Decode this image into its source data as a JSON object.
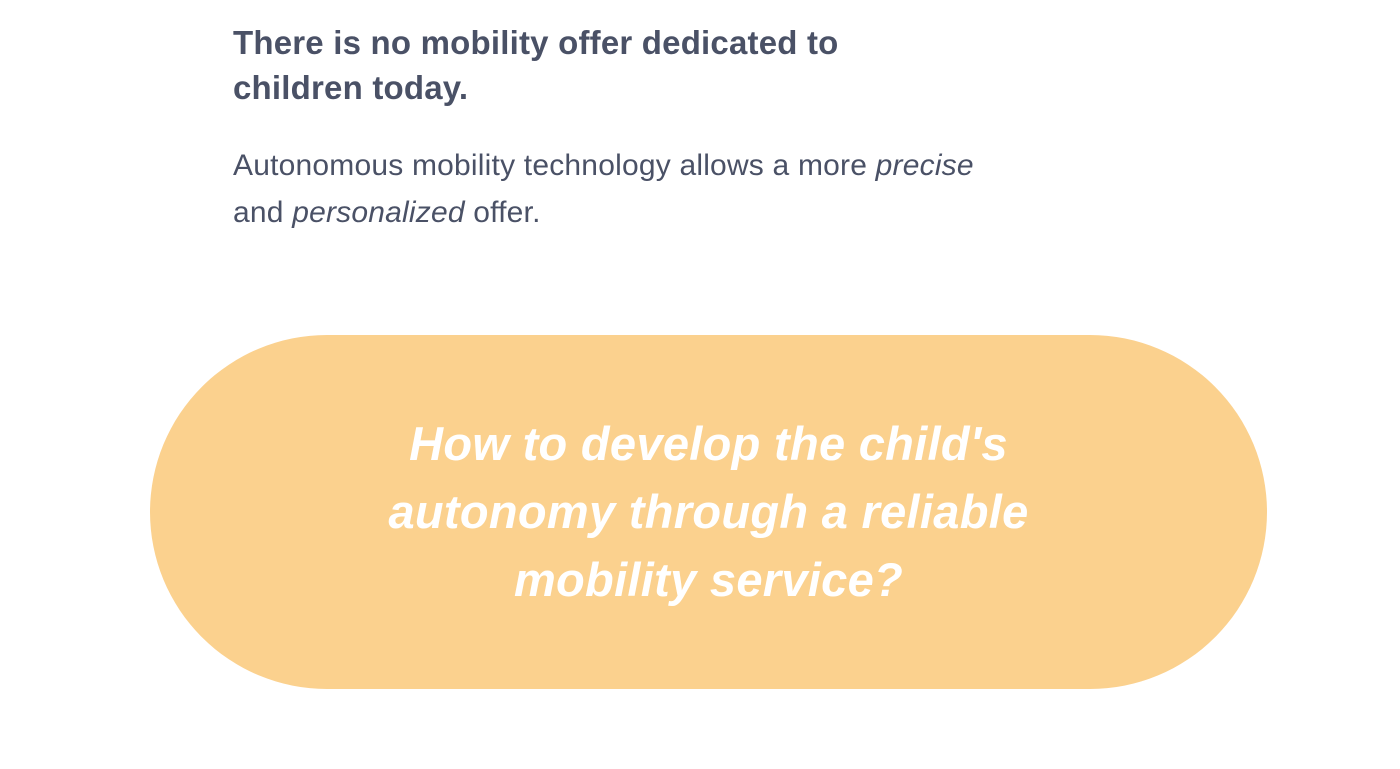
{
  "colors": {
    "page_background": "#FFFFFF",
    "heading_text": "#4A5166",
    "body_text": "#4A5166",
    "pill_background": "#FBD18E",
    "pill_text": "#FFFFFF"
  },
  "heading": {
    "lines": [
      "There is no mobility offer dedicated to",
      "children today."
    ]
  },
  "paragraph": {
    "rich_lines": [
      [
        {
          "text": "Autonomous mobility technology allows a more ",
          "italic": false
        },
        {
          "text": "precise",
          "italic": true
        }
      ],
      [
        {
          "text": "and ",
          "italic": false
        },
        {
          "text": "personalized",
          "italic": true
        },
        {
          "text": " offer.",
          "italic": false
        }
      ]
    ]
  },
  "question_pill": {
    "lines": [
      "How to develop the child's",
      "autonomy through a reliable",
      "mobility service?"
    ]
  }
}
